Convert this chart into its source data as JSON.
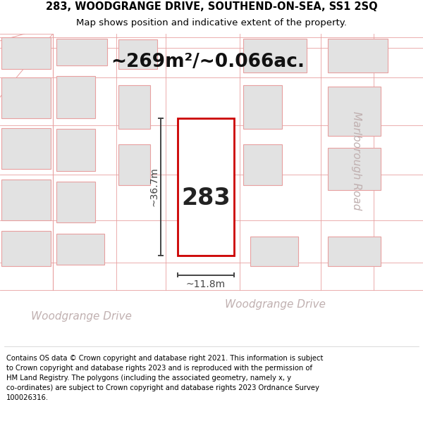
{
  "title": "283, WOODGRANGE DRIVE, SOUTHEND-ON-SEA, SS1 2SQ",
  "subtitle": "Map shows position and indicative extent of the property.",
  "footer": "Contains OS data © Crown copyright and database right 2021. This information is subject\nto Crown copyright and database rights 2023 and is reproduced with the permission of\nHM Land Registry. The polygons (including the associated geometry, namely x, y\nco-ordinates) are subject to Crown copyright and database rights 2023 Ordnance Survey\n100026316.",
  "area_label": "~269m²/~0.066ac.",
  "plot_number": "283",
  "width_label": "~11.8m",
  "height_label": "~36.7m",
  "road_label_bottom_left": "Woodgrange Drive",
  "road_label_bottom_right": "Woodgrange Drive",
  "road_label_right": "Marlborough Road",
  "bg_color": "#ffffff",
  "map_bg": "#f5eded",
  "block_fill": "#e2e2e2",
  "block_edge": "#e8a0a0",
  "road_fill": "#ffffff",
  "plot_edge": "#cc0000",
  "plot_fill": "#ffffff",
  "dim_color": "#444444",
  "road_text_color": "#c0b0b0",
  "title_fontsize": 10.5,
  "subtitle_fontsize": 9.5,
  "footer_fontsize": 7.2,
  "area_fontsize": 19,
  "number_fontsize": 24,
  "dim_fontsize": 10,
  "road_fontsize": 11
}
